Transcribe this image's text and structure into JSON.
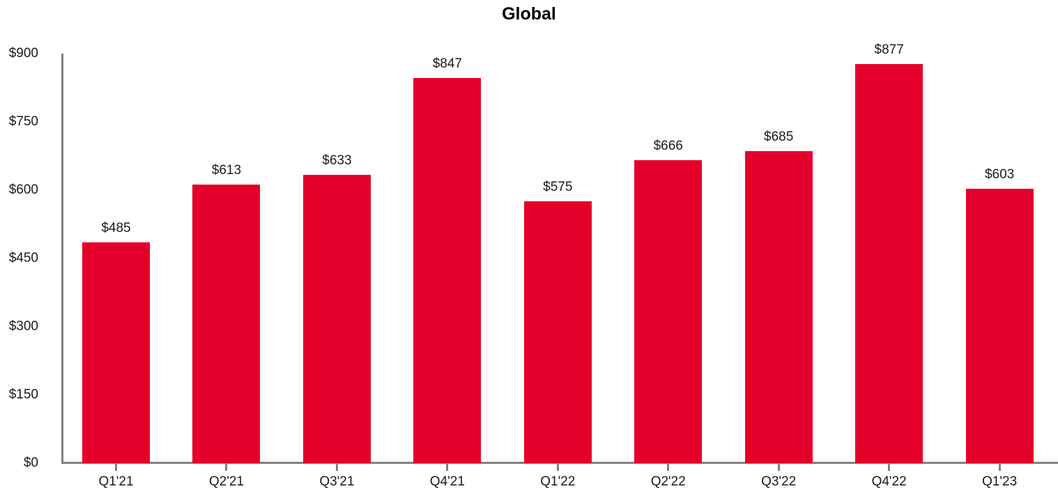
{
  "title": "Global",
  "colors": {
    "bar": "#E4002B",
    "axis": "#808080",
    "text": "#1A1A1A",
    "title_text": "#000000",
    "background": "#FFFFFF"
  },
  "chart_data": {
    "type": "bar",
    "title": "Global",
    "categories": [
      "Q1'21",
      "Q2'21",
      "Q3'21",
      "Q4'21",
      "Q1'22",
      "Q2'22",
      "Q3'22",
      "Q4'22",
      "Q1'23"
    ],
    "values": [
      485,
      613,
      633,
      847,
      575,
      666,
      685,
      877,
      603
    ],
    "bar_labels": [
      "$485",
      "$613",
      "$633",
      "$847",
      "$575",
      "$666",
      "$685",
      "$877",
      "$603"
    ],
    "y_tick_values": [
      0,
      150,
      300,
      450,
      600,
      750,
      900
    ],
    "y_tick_labels": [
      "$0",
      "$150",
      "$300",
      "$450",
      "$600",
      "$750",
      "$900"
    ],
    "ylim": [
      0,
      900
    ],
    "xlabel": "",
    "ylabel": "",
    "grid": false,
    "legend": null,
    "bar_color": "#E4002B",
    "axis_color": "#808080"
  }
}
